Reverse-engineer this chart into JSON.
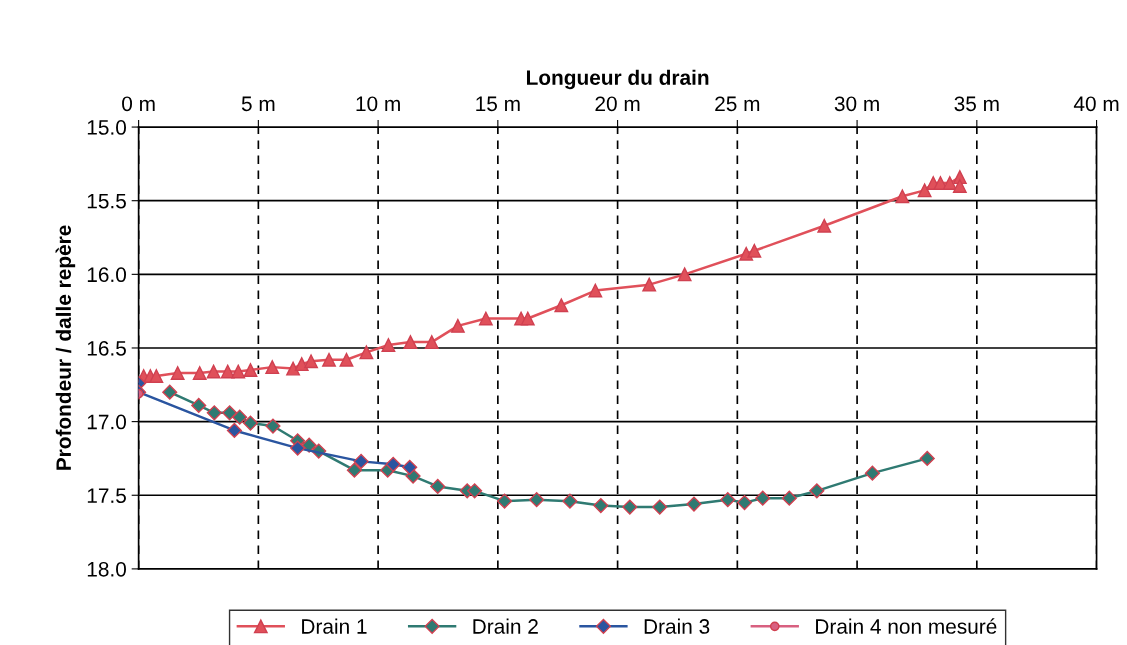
{
  "chart_data": {
    "type": "line",
    "xlabel": "Longueur du drain",
    "ylabel": "Profondeur / dalle repère",
    "xlim": [
      0,
      40
    ],
    "xticks": [
      {
        "value": 0,
        "label": "0 m"
      },
      {
        "value": 5,
        "label": "5 m"
      },
      {
        "value": 10,
        "label": "10 m"
      },
      {
        "value": 15,
        "label": "15 m"
      },
      {
        "value": 20,
        "label": "20 m"
      },
      {
        "value": 25,
        "label": "25 m"
      },
      {
        "value": 30,
        "label": "30 m"
      },
      {
        "value": 35,
        "label": "35 m"
      },
      {
        "value": 40,
        "label": "40 m"
      }
    ],
    "ylim": [
      18.0,
      15.0
    ],
    "yticks": [
      {
        "value": 15,
        "label": "15.0"
      },
      {
        "value": 15.5,
        "label": "15.5"
      },
      {
        "value": 16,
        "label": "16.0"
      },
      {
        "value": 16.5,
        "label": "16.5"
      },
      {
        "value": 17,
        "label": "17.0"
      },
      {
        "value": 17.5,
        "label": "17.5"
      },
      {
        "value": 18,
        "label": "18.0"
      }
    ],
    "grid": true,
    "legend": "bottom",
    "line_style": "solid",
    "series": [
      {
        "name": "Drain 1",
        "color": "#e0505a",
        "marker": "triangle",
        "x": [
          0.21,
          0.49,
          0.74,
          1.63,
          2.55,
          3.13,
          3.72,
          4.16,
          4.67,
          5.58,
          6.45,
          6.81,
          7.2,
          7.95,
          8.68,
          9.51,
          10.43,
          11.35,
          12.24,
          13.33,
          14.5,
          15.97,
          16.25,
          17.65,
          19.07,
          21.32,
          22.8,
          25.37,
          25.71,
          28.63,
          31.89,
          32.82,
          33.18,
          33.48,
          33.87,
          34.29,
          34.29
        ],
        "values": [
          16.69,
          16.69,
          16.69,
          16.67,
          16.67,
          16.66,
          16.66,
          16.66,
          16.65,
          16.63,
          16.64,
          16.61,
          16.59,
          16.58,
          16.58,
          16.53,
          16.48,
          16.46,
          16.46,
          16.35,
          16.3,
          16.3,
          16.3,
          16.21,
          16.11,
          16.07,
          16.0,
          15.86,
          15.84,
          15.67,
          15.47,
          15.43,
          15.38,
          15.38,
          15.38,
          15.34,
          15.4
        ]
      },
      {
        "name": "Drain 2",
        "color": "#2f7a72",
        "marker": "diamond",
        "x": [
          1.3,
          2.51,
          3.16,
          3.8,
          4.22,
          4.67,
          5.61,
          6.64,
          7.12,
          7.52,
          9.01,
          10.4,
          11.46,
          12.49,
          13.72,
          14.03,
          15.28,
          16.62,
          18.01,
          19.3,
          20.51,
          21.76,
          23.19,
          24.6,
          25.3,
          26.06,
          27.17,
          28.32,
          30.64,
          32.93
        ],
        "values": [
          16.8,
          16.89,
          16.94,
          16.94,
          16.97,
          17.01,
          17.03,
          17.13,
          17.16,
          17.2,
          17.33,
          17.33,
          17.37,
          17.44,
          17.47,
          17.47,
          17.54,
          17.53,
          17.54,
          17.57,
          17.58,
          17.58,
          17.56,
          17.53,
          17.55,
          17.52,
          17.52,
          17.47,
          17.35,
          17.25
        ]
      },
      {
        "name": "Drain 3",
        "color": "#2a55a0",
        "marker": "diamond",
        "x": [
          0,
          0,
          4.0,
          6.64,
          9.29,
          10.63,
          11.32
        ],
        "values": [
          16.74,
          16.8,
          17.06,
          17.18,
          17.27,
          17.29,
          17.31
        ]
      },
      {
        "name": "Drain 4 non mesuré",
        "color": "#d86080",
        "marker": "circle",
        "x": [
          0
        ],
        "values": [
          16.81
        ]
      }
    ]
  }
}
